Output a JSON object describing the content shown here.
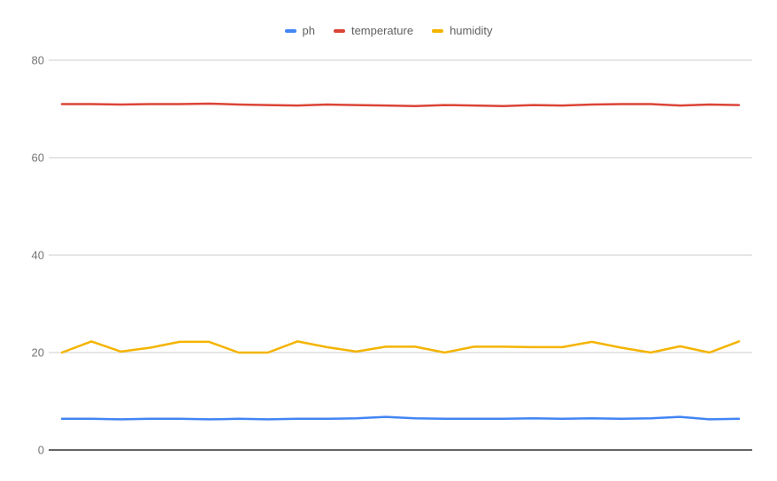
{
  "chart_data": {
    "type": "line",
    "title": "",
    "xlabel": "",
    "ylabel": "",
    "ylim": [
      0,
      80
    ],
    "yticks": [
      0,
      20,
      40,
      60,
      80
    ],
    "grid": true,
    "x_axis_labels_visible": false,
    "legend_position": "top-center",
    "gridline_color": "#cccccc",
    "baseline_color": "#333333",
    "tick_label_color": "#757575",
    "legend_text_color": "#616161",
    "series": [
      {
        "name": "ph",
        "color": "#4285f4",
        "values": [
          6.4,
          6.4,
          6.3,
          6.4,
          6.4,
          6.3,
          6.4,
          6.3,
          6.4,
          6.4,
          6.5,
          6.8,
          6.5,
          6.4,
          6.4,
          6.4,
          6.5,
          6.4,
          6.5,
          6.4,
          6.5,
          6.8,
          6.3,
          6.4
        ]
      },
      {
        "name": "temperature",
        "color": "#db4437",
        "values": [
          71.0,
          71.0,
          70.9,
          71.0,
          71.0,
          71.1,
          70.9,
          70.8,
          70.7,
          70.9,
          70.8,
          70.7,
          70.6,
          70.8,
          70.7,
          70.6,
          70.8,
          70.7,
          70.9,
          71.0,
          71.0,
          70.7,
          70.9,
          70.8
        ]
      },
      {
        "name": "humidity",
        "color": "#f4b400",
        "values": [
          20.0,
          22.3,
          20.2,
          21.0,
          22.2,
          22.2,
          20.0,
          20.0,
          22.3,
          21.1,
          20.2,
          21.2,
          21.2,
          20.0,
          21.2,
          21.2,
          21.1,
          21.1,
          22.2,
          21.0,
          20.0,
          21.3,
          20.0,
          22.3
        ]
      }
    ]
  }
}
